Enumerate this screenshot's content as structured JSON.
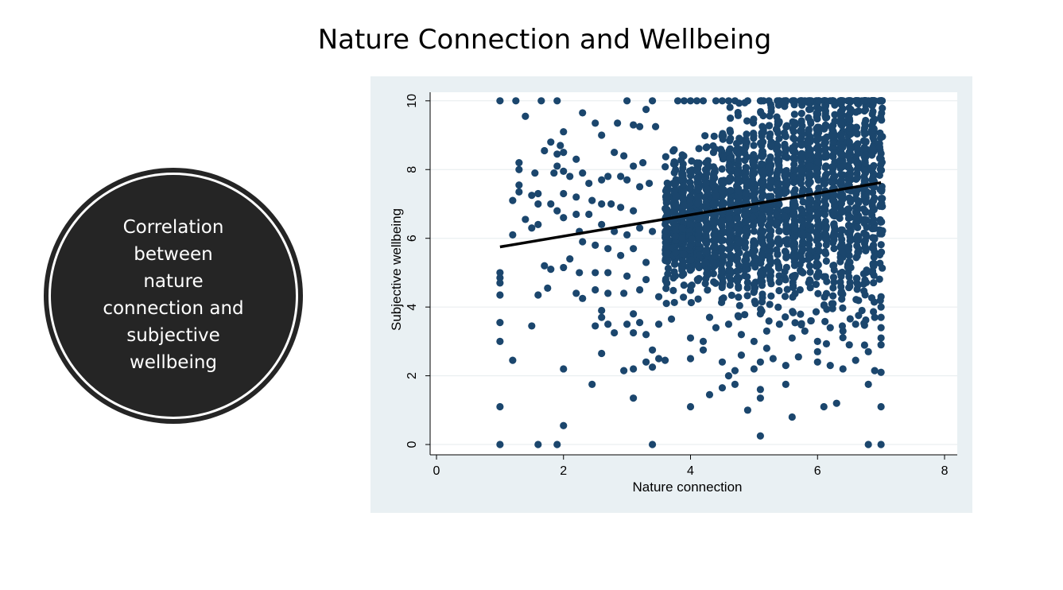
{
  "slide": {
    "title": "Nature Connection and Wellbeing",
    "callout": "Correlation\nbetween\nnature\nconnection and\nsubjective\nwellbeing"
  },
  "colors": {
    "background": "#ffffff",
    "chart_panel": "#e9f0f3",
    "plot_area": "#ffffff",
    "marker": "#1b466d",
    "fit_line": "#000000",
    "callout_fill": "#252525"
  },
  "chart_data": {
    "type": "scatter",
    "title": "",
    "xlabel": "Nature connection",
    "ylabel": "Subjective wellbeing",
    "xlim": [
      -0.1,
      8.2
    ],
    "ylim": [
      -0.3,
      10.25
    ],
    "xticks": [
      0,
      2,
      4,
      6,
      8
    ],
    "yticks": [
      0,
      2,
      4,
      6,
      8,
      10
    ],
    "grid": "horizontal",
    "fit_line": {
      "x": [
        1,
        7
      ],
      "y": [
        5.75,
        7.62
      ]
    },
    "points": [
      [
        1,
        10
      ],
      [
        1.25,
        10
      ],
      [
        1.65,
        10
      ],
      [
        1.9,
        10
      ],
      [
        3,
        10
      ],
      [
        3.4,
        10
      ],
      [
        3.8,
        10
      ],
      [
        3.9,
        10
      ],
      [
        4,
        10
      ],
      [
        4.1,
        10
      ],
      [
        4.2,
        10
      ],
      [
        4.4,
        10
      ],
      [
        4.5,
        10
      ],
      [
        4.6,
        10
      ],
      [
        4.7,
        10
      ],
      [
        4.9,
        10
      ],
      [
        5.1,
        10
      ],
      [
        5.4,
        10
      ],
      [
        5.8,
        10
      ],
      [
        5.9,
        10
      ],
      [
        6.1,
        10
      ],
      [
        6.2,
        10
      ],
      [
        6.4,
        10
      ],
      [
        6.6,
        10
      ],
      [
        6.7,
        10
      ],
      [
        6.8,
        10
      ],
      [
        7,
        10
      ],
      [
        1.4,
        9.55
      ],
      [
        2.3,
        9.65
      ],
      [
        2.5,
        9.35
      ],
      [
        2.85,
        9.35
      ],
      [
        3.1,
        9.3
      ],
      [
        3.2,
        9.25
      ],
      [
        3.3,
        9.75
      ],
      [
        3.45,
        9.25
      ],
      [
        2,
        9.1
      ],
      [
        2.6,
        9.0
      ],
      [
        1.8,
        8.8
      ],
      [
        1.95,
        8.7
      ],
      [
        2.0,
        8.5
      ],
      [
        2.2,
        8.3
      ],
      [
        1.9,
        8.45
      ],
      [
        1.7,
        8.55
      ],
      [
        2.8,
        8.5
      ],
      [
        2.95,
        8.4
      ],
      [
        3.1,
        8.1
      ],
      [
        3.25,
        8.2
      ],
      [
        1.3,
        8.2
      ],
      [
        1.3,
        8.0
      ],
      [
        1.55,
        7.9
      ],
      [
        1.85,
        7.9
      ],
      [
        1.9,
        8.1
      ],
      [
        2.0,
        7.95
      ],
      [
        2.1,
        7.8
      ],
      [
        2.3,
        7.9
      ],
      [
        2.4,
        7.6
      ],
      [
        2.6,
        7.7
      ],
      [
        2.7,
        7.8
      ],
      [
        2.9,
        7.8
      ],
      [
        3.0,
        7.7
      ],
      [
        3.2,
        7.5
      ],
      [
        3.35,
        7.6
      ],
      [
        1.3,
        7.55
      ],
      [
        1.3,
        7.35
      ],
      [
        1.2,
        7.1
      ],
      [
        1.5,
        7.25
      ],
      [
        1.6,
        7.3
      ],
      [
        1.6,
        7.0
      ],
      [
        1.8,
        7.0
      ],
      [
        2.0,
        7.3
      ],
      [
        2.2,
        7.2
      ],
      [
        2.45,
        7.1
      ],
      [
        2.6,
        7.0
      ],
      [
        2.75,
        7.0
      ],
      [
        2.9,
        6.9
      ],
      [
        3.1,
        6.8
      ],
      [
        1.4,
        6.55
      ],
      [
        1.6,
        6.4
      ],
      [
        1.2,
        6.1
      ],
      [
        1.5,
        6.3
      ],
      [
        1.9,
        6.8
      ],
      [
        2.0,
        6.6
      ],
      [
        2.2,
        6.7
      ],
      [
        2.4,
        6.7
      ],
      [
        2.6,
        6.4
      ],
      [
        2.8,
        6.2
      ],
      [
        3.0,
        6.1
      ],
      [
        3.2,
        6.3
      ],
      [
        3.4,
        6.2
      ],
      [
        2.25,
        6.2
      ],
      [
        2.3,
        5.9
      ],
      [
        2.5,
        5.8
      ],
      [
        2.7,
        5.7
      ],
      [
        2.9,
        5.5
      ],
      [
        3.1,
        5.7
      ],
      [
        3.3,
        5.3
      ],
      [
        2.1,
        5.4
      ],
      [
        1.7,
        5.2
      ],
      [
        1.8,
        5.1
      ],
      [
        2.0,
        5.15
      ],
      [
        2.25,
        5.0
      ],
      [
        2.5,
        5.0
      ],
      [
        2.7,
        5.0
      ],
      [
        3.0,
        4.9
      ],
      [
        3.3,
        4.8
      ],
      [
        1,
        5.0
      ],
      [
        1,
        4.85
      ],
      [
        1,
        4.7
      ],
      [
        1,
        4.35
      ],
      [
        1.6,
        4.35
      ],
      [
        1.75,
        4.55
      ],
      [
        2.2,
        4.4
      ],
      [
        2.3,
        4.25
      ],
      [
        2.5,
        4.5
      ],
      [
        2.7,
        4.4
      ],
      [
        2.95,
        4.4
      ],
      [
        3.2,
        4.5
      ],
      [
        3.5,
        4.3
      ],
      [
        2.6,
        3.9
      ],
      [
        2.6,
        3.7
      ],
      [
        2.7,
        3.5
      ],
      [
        2.5,
        3.45
      ],
      [
        3.0,
        3.5
      ],
      [
        3.1,
        3.8
      ],
      [
        3.2,
        3.55
      ],
      [
        3.1,
        3.25
      ],
      [
        3.3,
        3.2
      ],
      [
        3.5,
        3.5
      ],
      [
        3.7,
        3.65
      ],
      [
        2.8,
        3.25
      ],
      [
        1,
        3.55
      ],
      [
        1.5,
        3.45
      ],
      [
        1,
        3.0
      ],
      [
        2.6,
        2.65
      ],
      [
        3.4,
        2.75
      ],
      [
        3.5,
        2.5
      ],
      [
        3.3,
        2.4
      ],
      [
        3.6,
        2.45
      ],
      [
        1.2,
        2.45
      ],
      [
        2.0,
        2.2
      ],
      [
        2.95,
        2.15
      ],
      [
        3.1,
        2.2
      ],
      [
        3.4,
        2.25
      ],
      [
        2.45,
        1.75
      ],
      [
        3.1,
        1.35
      ],
      [
        1,
        1.1
      ],
      [
        2.0,
        0.55
      ],
      [
        1,
        0
      ],
      [
        1.6,
        0
      ],
      [
        1.9,
        0
      ],
      [
        3.4,
        0
      ],
      [
        4.0,
        1.1
      ],
      [
        4.3,
        1.45
      ],
      [
        4.5,
        1.65
      ],
      [
        4.7,
        1.75
      ],
      [
        4.6,
        2.0
      ],
      [
        4.9,
        1.0
      ],
      [
        5.1,
        1.6
      ],
      [
        5.1,
        1.35
      ],
      [
        5.1,
        0.25
      ],
      [
        5.5,
        1.75
      ],
      [
        5.6,
        0.8
      ],
      [
        6.1,
        1.1
      ],
      [
        6.3,
        1.2
      ],
      [
        6.8,
        1.75
      ],
      [
        7,
        1.1
      ],
      [
        6.9,
        2.15
      ],
      [
        7,
        2.1
      ],
      [
        6.8,
        0
      ],
      [
        7,
        0
      ],
      [
        4.0,
        2.5
      ],
      [
        4.2,
        2.75
      ],
      [
        4.5,
        2.4
      ],
      [
        4.8,
        2.6
      ],
      [
        5.0,
        2.2
      ],
      [
        5.1,
        2.4
      ],
      [
        5.3,
        2.5
      ],
      [
        5.5,
        2.3
      ],
      [
        5.7,
        2.55
      ],
      [
        6.0,
        2.4
      ],
      [
        6.2,
        2.3
      ],
      [
        6.4,
        2.2
      ],
      [
        6.6,
        2.45
      ],
      [
        6.8,
        2.7
      ],
      [
        4.7,
        2.15
      ],
      [
        5.2,
        2.8
      ],
      [
        6.0,
        2.7
      ],
      [
        6.5,
        2.9
      ],
      [
        7,
        2.9
      ],
      [
        7,
        3.1
      ],
      [
        7,
        3.4
      ],
      [
        4.0,
        3.1
      ],
      [
        4.2,
        3.0
      ],
      [
        4.4,
        3.4
      ],
      [
        4.6,
        3.5
      ],
      [
        4.8,
        3.2
      ],
      [
        5.0,
        3.0
      ],
      [
        5.2,
        3.3
      ],
      [
        5.4,
        3.5
      ],
      [
        5.6,
        3.1
      ],
      [
        5.8,
        3.3
      ],
      [
        6.0,
        3.0
      ],
      [
        6.2,
        3.4
      ],
      [
        6.4,
        3.3
      ],
      [
        6.6,
        3.5
      ],
      [
        6.9,
        3.7
      ],
      [
        7,
        3.7
      ],
      [
        7,
        4.0
      ],
      [
        7,
        4.3
      ],
      [
        4.3,
        3.7
      ],
      [
        5.1,
        3.8
      ],
      [
        5.9,
        3.6
      ],
      [
        6.7,
        3.9
      ]
    ]
  }
}
